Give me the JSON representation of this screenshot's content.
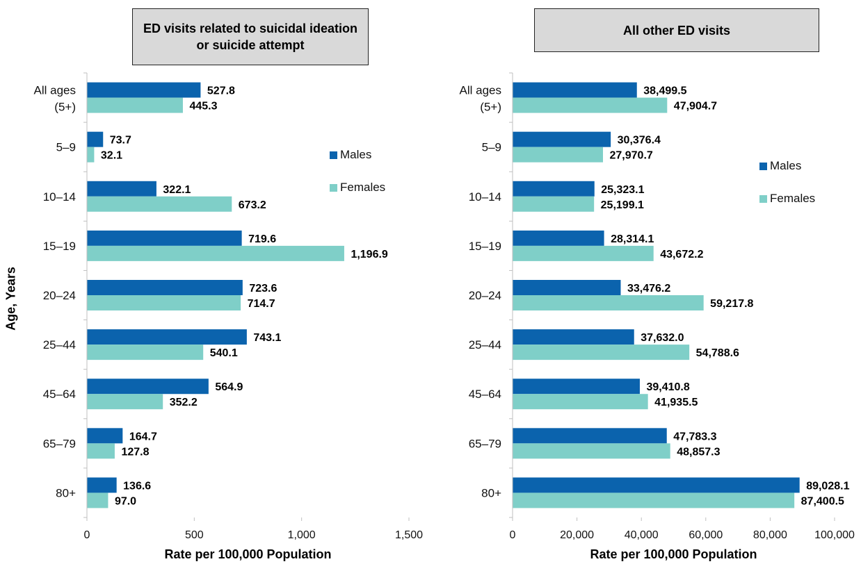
{
  "colors": {
    "males": "#0b63ad",
    "females": "#7fcfc8",
    "axis": "#bfbfbf",
    "title_box": "#d9d9d9"
  },
  "y_axis_title": "Age, Years",
  "legend": {
    "males": "Males",
    "females": "Females"
  },
  "chart_data": [
    {
      "type": "bar",
      "orientation": "horizontal",
      "title": "ED visits related to suicidal ideation or suicide attempt",
      "xlabel": "Rate per 100,000 Population",
      "ylabel": "Age, Years",
      "categories": [
        [
          "All ages",
          "(5+)"
        ],
        [
          "5–9"
        ],
        [
          "10–14"
        ],
        [
          "15–19"
        ],
        [
          "20–24"
        ],
        [
          "25–44"
        ],
        [
          "45–64"
        ],
        [
          "65–79"
        ],
        [
          "80+"
        ]
      ],
      "series": [
        {
          "name": "Males",
          "values": [
            527.8,
            73.7,
            322.1,
            719.6,
            723.6,
            743.1,
            564.9,
            164.7,
            136.6
          ],
          "labels": [
            "527.8",
            "73.7",
            "322.1",
            "719.6",
            "723.6",
            "743.1",
            "564.9",
            "164.7",
            "136.6"
          ]
        },
        {
          "name": "Females",
          "values": [
            445.3,
            32.1,
            673.2,
            1196.9,
            714.7,
            540.1,
            352.2,
            127.8,
            97.0
          ],
          "labels": [
            "445.3",
            "32.1",
            "673.2",
            "1,196.9",
            "714.7",
            "540.1",
            "352.2",
            "127.8",
            "97.0"
          ]
        }
      ],
      "xlim": [
        0,
        1500
      ],
      "xticks": [
        0,
        500,
        1000,
        1500
      ],
      "xtick_labels": [
        "0",
        "500",
        "1,000",
        "1,500"
      ],
      "legend_position": "right"
    },
    {
      "type": "bar",
      "orientation": "horizontal",
      "title": "All other ED visits",
      "xlabel": "Rate per 100,000 Population",
      "categories": [
        [
          "All ages",
          "(5+)"
        ],
        [
          "5–9"
        ],
        [
          "10–14"
        ],
        [
          "15–19"
        ],
        [
          "20–24"
        ],
        [
          "25–44"
        ],
        [
          "45–64"
        ],
        [
          "65–79"
        ],
        [
          "80+"
        ]
      ],
      "series": [
        {
          "name": "Males",
          "values": [
            38499.5,
            30376.4,
            25323.1,
            28314.1,
            33476.2,
            37632.0,
            39410.8,
            47783.3,
            89028.1
          ],
          "labels": [
            "38,499.5",
            "30,376.4",
            "25,323.1",
            "28,314.1",
            "33,476.2",
            "37,632.0",
            "39,410.8",
            "47,783.3",
            "89,028.1"
          ]
        },
        {
          "name": "Females",
          "values": [
            47904.7,
            27970.7,
            25199.1,
            43672.2,
            59217.8,
            54788.6,
            41935.5,
            48857.3,
            87400.5
          ],
          "labels": [
            "47,904.7",
            "27,970.7",
            "25,199.1",
            "43,672.2",
            "59,217.8",
            "54,788.6",
            "41,935.5",
            "48,857.3",
            "87,400.5"
          ]
        }
      ],
      "xlim": [
        0,
        100000
      ],
      "xticks": [
        0,
        20000,
        40000,
        60000,
        80000,
        100000
      ],
      "xtick_labels": [
        "0",
        "20,000",
        "40,000",
        "60,000",
        "80,000",
        "100,000"
      ],
      "legend_position": "right"
    }
  ]
}
